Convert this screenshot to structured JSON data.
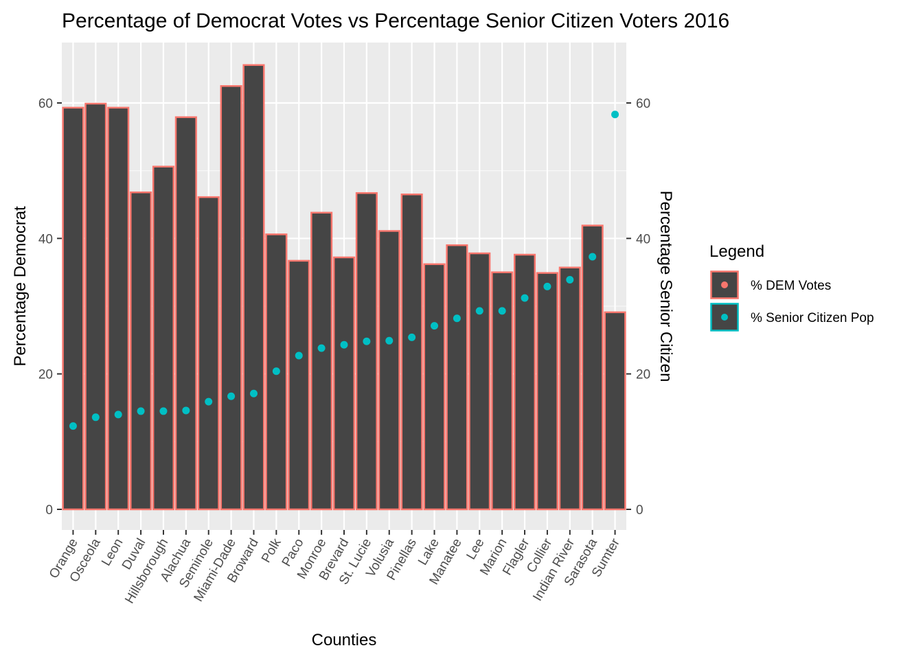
{
  "chart_data": {
    "type": "bar",
    "title": "Percentage of Democrat Votes vs Percentage Senior Citizen Voters 2016",
    "xlabel": "Counties",
    "ylabel": "Percentage Democrat",
    "y2label": "Percentage Senior Citizen",
    "ylim": [
      0,
      68.5
    ],
    "yticks": [
      0,
      20,
      40,
      60
    ],
    "y2ticks": [
      0,
      20,
      40,
      60
    ],
    "grid": true,
    "legend_position": "right",
    "legend_title": "Legend",
    "categories": [
      "Orange",
      "Osceola",
      "Leon",
      "Duval",
      "Hillsborough",
      "Alachua",
      "Seminole",
      "Miami-Dade",
      "Broward",
      "Polk",
      "Paco",
      "Monroe",
      "Brevard",
      "St. Lucie",
      "Volusia",
      "Pinellas",
      "Lake",
      "Manatee",
      "Lee",
      "Marion",
      "Flagler",
      "Collier",
      "Indian River",
      "Sarasota",
      "Sumter"
    ],
    "series": [
      {
        "name": "% DEM Votes",
        "type": "bar",
        "color": "#F8766D",
        "fill": "#454545",
        "values": [
          59.3,
          59.9,
          59.3,
          46.8,
          50.6,
          57.9,
          46.1,
          62.5,
          65.6,
          40.6,
          36.7,
          43.8,
          37.2,
          46.7,
          41.1,
          46.5,
          36.2,
          39.0,
          37.8,
          35.0,
          37.6,
          34.9,
          35.7,
          41.9,
          29.1
        ]
      },
      {
        "name": "% Senior Citizen Pop",
        "type": "scatter",
        "color": "#00BFC4",
        "values": [
          12.3,
          13.6,
          14.0,
          14.5,
          14.5,
          14.6,
          15.9,
          16.7,
          17.1,
          20.4,
          22.7,
          23.8,
          24.3,
          24.8,
          24.9,
          25.4,
          27.1,
          28.2,
          29.3,
          29.3,
          31.2,
          32.9,
          33.9,
          37.3,
          58.3
        ]
      }
    ]
  }
}
